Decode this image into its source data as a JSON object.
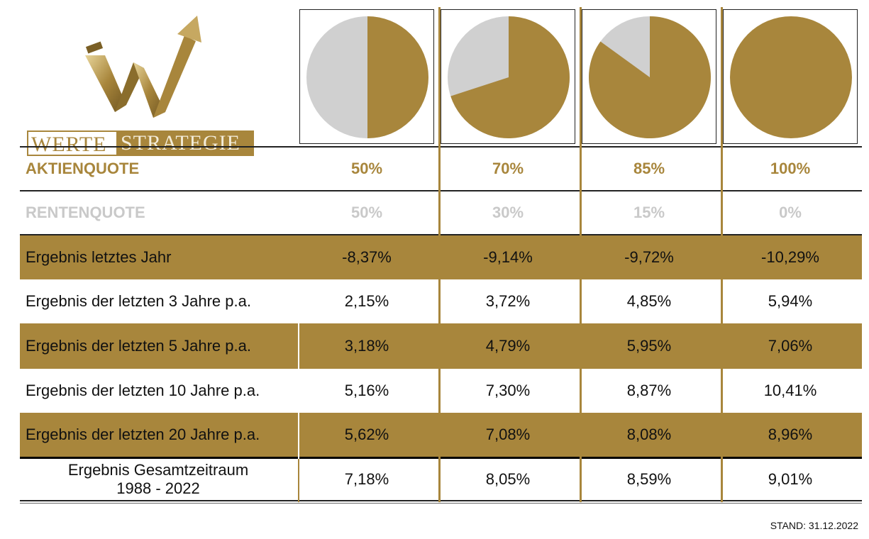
{
  "logo": {
    "word_left": "WERTE",
    "word_right": "STRATEGIE",
    "copyright": "©"
  },
  "colors": {
    "gold": "#a8863c",
    "grey": "#d0d0d0"
  },
  "chart_data": {
    "type": "table",
    "columns": [
      "50%",
      "70%",
      "85%",
      "100%"
    ],
    "pies": [
      {
        "aktien": 50,
        "renten": 50
      },
      {
        "aktien": 70,
        "renten": 30
      },
      {
        "aktien": 85,
        "renten": 15
      },
      {
        "aktien": 100,
        "renten": 0
      }
    ],
    "aktienquote": {
      "label": "AKTIENQUOTE",
      "values": [
        "50%",
        "70%",
        "85%",
        "100%"
      ]
    },
    "rentenquote": {
      "label": "RENTENQUOTE",
      "values": [
        "50%",
        "30%",
        "15%",
        "0%"
      ]
    },
    "rows": [
      {
        "label": "Ergebnis letztes Jahr",
        "values": [
          "-8,37%",
          "-9,14%",
          "-9,72%",
          "-10,29%"
        ]
      },
      {
        "label": "Ergebnis der letzten 3 Jahre p.a.",
        "values": [
          "2,15%",
          "3,72%",
          "4,85%",
          "5,94%"
        ]
      },
      {
        "label": "Ergebnis der letzten 5 Jahre p.a.",
        "values": [
          "3,18%",
          "4,79%",
          "5,95%",
          "7,06%"
        ]
      },
      {
        "label": "Ergebnis der letzten 10 Jahre p.a.",
        "values": [
          "5,16%",
          "7,30%",
          "8,87%",
          "10,41%"
        ]
      },
      {
        "label": "Ergebnis der letzten 20 Jahre p.a.",
        "values": [
          "5,62%",
          "7,08%",
          "8,08%",
          "8,96%"
        ]
      }
    ],
    "total": {
      "label_line1": "Ergebnis Gesamtzeitraum",
      "label_line2": "1988 - 2022",
      "values": [
        "7,18%",
        "8,05%",
        "8,59%",
        "9,01%"
      ]
    }
  },
  "footer": {
    "stand": "STAND: 31.12.2022"
  }
}
